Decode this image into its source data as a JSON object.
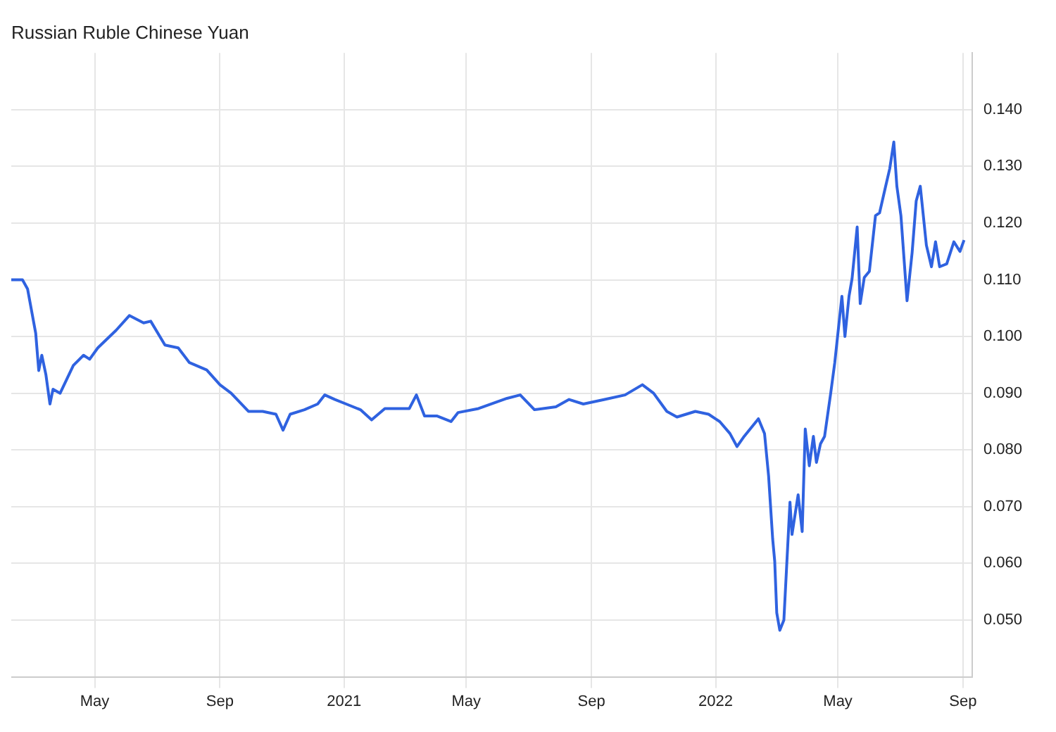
{
  "chart_data": {
    "type": "line",
    "title": "Russian Ruble Chinese Yuan",
    "x": [
      "2020-02-09",
      "2020-02-20",
      "2020-02-25",
      "2020-02-29",
      "2020-03-04",
      "2020-03-07",
      "2020-03-10",
      "2020-03-14",
      "2020-03-18",
      "2020-03-21",
      "2020-03-28",
      "2020-04-10",
      "2020-04-20",
      "2020-04-26",
      "2020-05-04",
      "2020-05-22",
      "2020-06-04",
      "2020-06-18",
      "2020-06-25",
      "2020-07-09",
      "2020-07-22",
      "2020-08-02",
      "2020-08-19",
      "2020-09-01",
      "2020-09-12",
      "2020-09-29",
      "2020-10-13",
      "2020-10-26",
      "2020-11-02",
      "2020-11-09",
      "2020-11-23",
      "2020-12-06",
      "2020-12-13",
      "2020-12-23",
      "2021-01-03",
      "2021-01-17",
      "2021-01-28",
      "2021-02-10",
      "2021-03-06",
      "2021-03-13",
      "2021-03-21",
      "2021-04-02",
      "2021-04-16",
      "2021-04-23",
      "2021-05-13",
      "2021-06-10",
      "2021-06-23",
      "2021-07-07",
      "2021-07-28",
      "2021-08-10",
      "2021-08-24",
      "2021-09-14",
      "2021-10-04",
      "2021-10-21",
      "2021-11-01",
      "2021-11-14",
      "2021-11-24",
      "2021-12-12",
      "2021-12-25",
      "2022-01-05",
      "2022-01-15",
      "2022-01-22",
      "2022-01-29",
      "2022-02-12",
      "2022-02-18",
      "2022-02-22",
      "2022-02-26",
      "2022-02-28",
      "2022-03-02",
      "2022-03-05",
      "2022-03-09",
      "2022-03-15",
      "2022-03-17",
      "2022-03-23",
      "2022-03-27",
      "2022-03-30",
      "2022-04-03",
      "2022-04-07",
      "2022-04-10",
      "2022-04-14",
      "2022-04-18",
      "2022-04-24",
      "2022-04-28",
      "2022-05-05",
      "2022-05-08",
      "2022-05-12",
      "2022-05-15",
      "2022-05-20",
      "2022-05-23",
      "2022-05-27",
      "2022-06-01",
      "2022-06-07",
      "2022-06-11",
      "2022-06-17",
      "2022-06-21",
      "2022-06-25",
      "2022-06-28",
      "2022-07-02",
      "2022-07-08",
      "2022-07-13",
      "2022-07-17",
      "2022-07-21",
      "2022-07-27",
      "2022-08-01",
      "2022-08-05",
      "2022-08-09",
      "2022-08-16",
      "2022-08-23",
      "2022-08-29",
      "2022-09-02"
    ],
    "series": [
      {
        "color": "#2f62e0",
        "values": [
          0.11,
          0.11,
          0.1084,
          0.1045,
          0.1006,
          0.094,
          0.0967,
          0.0933,
          0.0881,
          0.0907,
          0.09,
          0.0949,
          0.0967,
          0.096,
          0.098,
          0.1011,
          0.1037,
          0.1024,
          0.1027,
          0.0985,
          0.098,
          0.0954,
          0.0941,
          0.0915,
          0.09,
          0.0868,
          0.0868,
          0.0863,
          0.0835,
          0.0863,
          0.0871,
          0.0881,
          0.0897,
          0.0889,
          0.0881,
          0.0871,
          0.0853,
          0.0873,
          0.0873,
          0.0897,
          0.086,
          0.086,
          0.085,
          0.0866,
          0.0873,
          0.0891,
          0.0897,
          0.0871,
          0.0876,
          0.0889,
          0.0881,
          0.0889,
          0.0897,
          0.0915,
          0.09,
          0.0868,
          0.0858,
          0.0868,
          0.0863,
          0.085,
          0.0829,
          0.0806,
          0.0824,
          0.0855,
          0.0829,
          0.0754,
          0.0643,
          0.0604,
          0.0513,
          0.0482,
          0.05,
          0.0708,
          0.0651,
          0.0721,
          0.0656,
          0.0837,
          0.0772,
          0.0824,
          0.0778,
          0.0811,
          0.0824,
          0.09,
          0.0954,
          0.1071,
          0.1,
          0.1071,
          0.1102,
          0.1193,
          0.1058,
          0.1104,
          0.1115,
          0.1213,
          0.1218,
          0.1265,
          0.1296,
          0.1343,
          0.1265,
          0.1213,
          0.1063,
          0.1148,
          0.1239,
          0.1265,
          0.1161,
          0.1123,
          0.1167,
          0.1123,
          0.1128,
          0.1167,
          0.115,
          0.117
        ]
      }
    ],
    "xlim": [
      "2020-02-09",
      "2022-09-10"
    ],
    "xticks": [
      {
        "value": "2020-05-01",
        "label": "May"
      },
      {
        "value": "2020-09-01",
        "label": "Sep"
      },
      {
        "value": "2021-01-01",
        "label": "2021"
      },
      {
        "value": "2021-05-01",
        "label": "May"
      },
      {
        "value": "2021-09-01",
        "label": "Sep"
      },
      {
        "value": "2022-01-01",
        "label": "2022"
      },
      {
        "value": "2022-05-01",
        "label": "May"
      },
      {
        "value": "2022-09-01",
        "label": "Sep"
      }
    ],
    "ylim": [
      0.04,
      0.15
    ],
    "yticks": [
      {
        "value": 0.05,
        "label": "0.050"
      },
      {
        "value": 0.06,
        "label": "0.060"
      },
      {
        "value": 0.07,
        "label": "0.070"
      },
      {
        "value": 0.08,
        "label": "0.080"
      },
      {
        "value": 0.09,
        "label": "0.090"
      },
      {
        "value": 0.1,
        "label": "0.100"
      },
      {
        "value": 0.11,
        "label": "0.110"
      },
      {
        "value": 0.12,
        "label": "0.120"
      },
      {
        "value": 0.13,
        "label": "0.130"
      },
      {
        "value": 0.14,
        "label": "0.140"
      }
    ],
    "grid": true,
    "legend": false,
    "marker": "none",
    "line_style": "solid"
  }
}
